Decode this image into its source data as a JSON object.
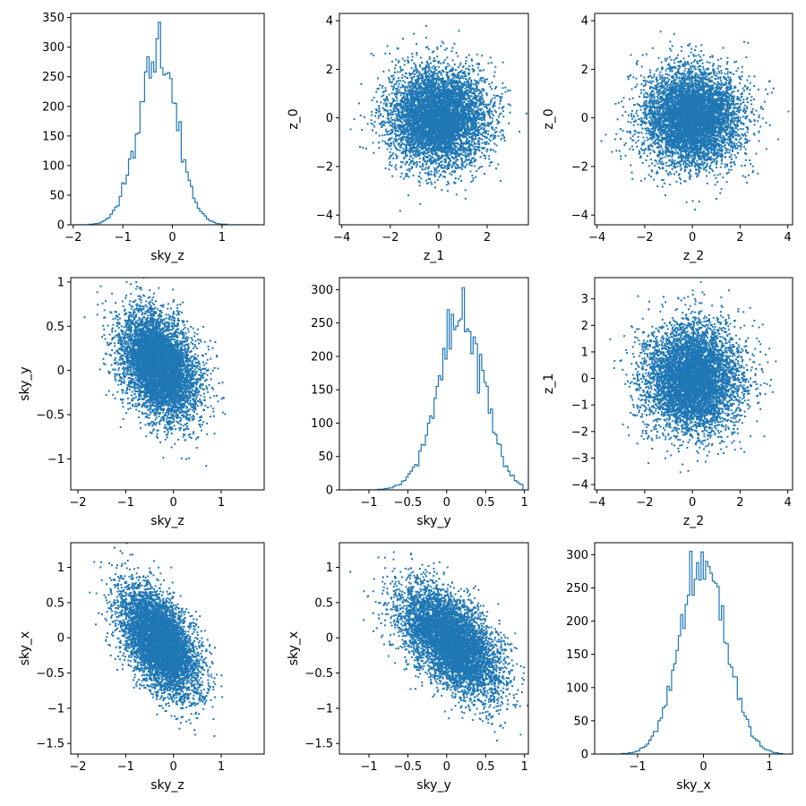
{
  "figure": {
    "title": "",
    "background": "#ffffff",
    "series_color": "#1f77b4"
  },
  "chart_data": [
    {
      "panel": "r0c0",
      "type": "histogram",
      "xlabel": "sky_z",
      "ylabel": "",
      "xlim": [
        -2.05,
        1.85
      ],
      "ylim": [
        0,
        357
      ],
      "xticks": [
        -2,
        -1,
        0,
        1
      ],
      "yticks": [
        0,
        50,
        100,
        150,
        200,
        250,
        300,
        350
      ],
      "dist": {
        "mean": -0.3,
        "std": 0.39,
        "peak": 342,
        "range": [
          -1.95,
          1.75
        ],
        "bins": 80,
        "step": true
      }
    },
    {
      "panel": "r0c1",
      "type": "scatter",
      "xlabel": "z_1",
      "ylabel": "z_0",
      "xlim": [
        -4.1,
        3.7
      ],
      "ylim": [
        -4.4,
        4.3
      ],
      "xticks": [
        -4,
        -2,
        0,
        2
      ],
      "yticks": [
        -4,
        -2,
        0,
        2,
        4
      ],
      "dist": {
        "mean_x": 0.0,
        "mean_y": 0.0,
        "std_x": 1.0,
        "std_y": 1.0,
        "corr": 0.0,
        "n_points": 6000
      }
    },
    {
      "panel": "r0c2",
      "type": "scatter",
      "xlabel": "z_2",
      "ylabel": "z_0",
      "xlim": [
        -4.1,
        4.2
      ],
      "ylim": [
        -4.4,
        4.3
      ],
      "xticks": [
        -4,
        -2,
        0,
        2,
        4
      ],
      "yticks": [
        -4,
        -2,
        0,
        2,
        4
      ],
      "dist": {
        "mean_x": 0.0,
        "mean_y": 0.0,
        "std_x": 1.0,
        "std_y": 1.0,
        "corr": 0.0,
        "n_points": 6000
      }
    },
    {
      "panel": "r1c0",
      "type": "scatter",
      "xlabel": "sky_z",
      "ylabel": "sky_y",
      "xlim": [
        -2.15,
        1.9
      ],
      "ylim": [
        -1.35,
        1.05
      ],
      "xticks": [
        -2,
        -1,
        0,
        1
      ],
      "yticks": [
        -1.0,
        -0.5,
        0.0,
        0.5,
        1.0
      ],
      "dist": {
        "mean_x": -0.3,
        "mean_y": 0.05,
        "std_x": 0.4,
        "std_y": 0.3,
        "corr": -0.35,
        "n_points": 6000
      }
    },
    {
      "panel": "r1c1",
      "type": "histogram",
      "xlabel": "sky_y",
      "ylabel": "",
      "xlim": [
        -1.38,
        1.05
      ],
      "ylim": [
        0,
        318
      ],
      "xticks": [
        -1.0,
        -0.5,
        0.0,
        0.5,
        1.0
      ],
      "yticks": [
        0,
        50,
        100,
        150,
        200,
        250,
        300
      ],
      "dist": {
        "mean": 0.12,
        "std": 0.3,
        "peak": 303,
        "range": [
          -1.25,
          0.98
        ],
        "bins": 80,
        "step": true,
        "skew": -0.6
      }
    },
    {
      "panel": "r1c2",
      "type": "scatter",
      "xlabel": "z_2",
      "ylabel": "z_1",
      "xlim": [
        -4.1,
        4.2
      ],
      "ylim": [
        -4.2,
        3.8
      ],
      "xticks": [
        -4,
        -2,
        0,
        2,
        4
      ],
      "yticks": [
        -4,
        -3,
        -2,
        -1,
        0,
        1,
        2,
        3
      ],
      "dist": {
        "mean_x": 0.0,
        "mean_y": 0.0,
        "std_x": 1.0,
        "std_y": 1.0,
        "corr": 0.0,
        "n_points": 6000
      }
    },
    {
      "panel": "r2c0",
      "type": "scatter",
      "xlabel": "sky_z",
      "ylabel": "sky_x",
      "xlim": [
        -2.15,
        1.9
      ],
      "ylim": [
        -1.65,
        1.35
      ],
      "xticks": [
        -2,
        -1,
        0,
        1
      ],
      "yticks": [
        -1.5,
        -1.0,
        -0.5,
        0.0,
        0.5,
        1.0
      ],
      "dist": {
        "mean_x": -0.3,
        "mean_y": -0.05,
        "std_x": 0.4,
        "std_y": 0.38,
        "corr": -0.55,
        "n_points": 6000
      }
    },
    {
      "panel": "r2c1",
      "type": "scatter",
      "xlabel": "sky_y",
      "ylabel": "sky_x",
      "xlim": [
        -1.38,
        1.05
      ],
      "ylim": [
        -1.65,
        1.35
      ],
      "xticks": [
        -1.0,
        -0.5,
        0.0,
        0.5,
        1.0
      ],
      "yticks": [
        -1.5,
        -1.0,
        -0.5,
        0.0,
        0.5,
        1.0
      ],
      "dist": {
        "mean_x": 0.05,
        "mean_y": -0.05,
        "std_x": 0.32,
        "std_y": 0.38,
        "corr": -0.55,
        "n_points": 6000
      }
    },
    {
      "panel": "r2c2",
      "type": "histogram",
      "xlabel": "sky_x",
      "ylabel": "",
      "xlim": [
        -1.65,
        1.35
      ],
      "ylim": [
        0,
        318
      ],
      "xticks": [
        -1,
        0,
        1
      ],
      "yticks": [
        0,
        50,
        100,
        150,
        200,
        250,
        300
      ],
      "dist": {
        "mean": 0.0,
        "std": 0.35,
        "peak": 305,
        "range": [
          -1.55,
          1.2
        ],
        "bins": 80,
        "step": true
      }
    }
  ]
}
